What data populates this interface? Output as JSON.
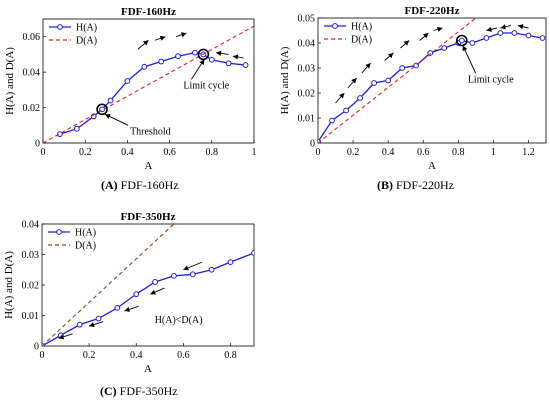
{
  "chart_data": [
    {
      "id": "A",
      "type": "line",
      "title": "FDF-160Hz",
      "xlabel": "A",
      "ylabel": "H(A) and D(A)",
      "xlim": [
        0,
        1
      ],
      "ylim": [
        0,
        0.07
      ],
      "xticks": [
        0,
        0.2,
        0.4,
        0.6,
        0.8,
        1
      ],
      "xtick_labels": [
        "0",
        "0.2",
        "0.4",
        "0.6",
        "0.8",
        "1"
      ],
      "yticks": [
        0,
        0.02,
        0.04,
        0.06
      ],
      "ytick_labels": [
        "0",
        "0.02",
        "0.04",
        "0.06"
      ],
      "grid": false,
      "legend_position": "top-left",
      "series": [
        {
          "name": "H(A)",
          "color": "#1f1fd8",
          "style": "solid-circle-markers",
          "x": [
            0.08,
            0.16,
            0.24,
            0.28,
            0.32,
            0.4,
            0.48,
            0.56,
            0.64,
            0.72,
            0.76,
            0.8,
            0.88,
            0.96
          ],
          "y": [
            0.005,
            0.008,
            0.015,
            0.019,
            0.024,
            0.035,
            0.043,
            0.046,
            0.049,
            0.051,
            0.05,
            0.047,
            0.045,
            0.044
          ]
        },
        {
          "name": "D(A)",
          "color": "#e02020",
          "style": "dashed",
          "x": [
            0,
            1
          ],
          "y": [
            0,
            0.066
          ]
        }
      ],
      "annotations": [
        {
          "text": "Threshold",
          "target": [
            0.28,
            0.019
          ],
          "type": "circled-point"
        },
        {
          "text": "Limit cycle",
          "target": [
            0.76,
            0.05
          ],
          "type": "circled-point"
        }
      ],
      "caption_letter": "(A)",
      "caption_text": "FDF-160Hz"
    },
    {
      "id": "B",
      "type": "line",
      "title": "FDF-220Hz",
      "xlabel": "A",
      "ylabel": "H(A) and D(A)",
      "xlim": [
        0,
        1.3
      ],
      "ylim": [
        0,
        0.05
      ],
      "xticks": [
        0,
        0.2,
        0.4,
        0.6,
        0.8,
        1,
        1.2
      ],
      "xtick_labels": [
        "0",
        "0.2",
        "0.4",
        "0.6",
        "0.8",
        "1",
        "1.2"
      ],
      "yticks": [
        0,
        0.01,
        0.02,
        0.03,
        0.04,
        0.05
      ],
      "ytick_labels": [
        "0",
        "0.01",
        "0.02",
        "0.03",
        "0.04",
        "0.05"
      ],
      "grid": false,
      "legend_position": "top-left",
      "series": [
        {
          "name": "H(A)",
          "color": "#1f1fd8",
          "style": "solid-circle-markers",
          "x": [
            0.0,
            0.08,
            0.16,
            0.24,
            0.32,
            0.4,
            0.48,
            0.56,
            0.64,
            0.72,
            0.8,
            0.82,
            0.88,
            0.96,
            1.04,
            1.12,
            1.2,
            1.28
          ],
          "y": [
            0.0005,
            0.009,
            0.013,
            0.018,
            0.024,
            0.025,
            0.03,
            0.031,
            0.036,
            0.038,
            0.04,
            0.041,
            0.04,
            0.042,
            0.044,
            0.044,
            0.043,
            0.042
          ]
        },
        {
          "name": "D(A)",
          "color": "#e02020",
          "style": "dashed",
          "x": [
            0,
            0.9
          ],
          "y": [
            0,
            0.05
          ]
        }
      ],
      "annotations": [
        {
          "text": "Limit cycle",
          "target": [
            0.82,
            0.041
          ],
          "type": "circled-point"
        }
      ],
      "caption_letter": "(B)",
      "caption_text": "FDF-220Hz"
    },
    {
      "id": "C",
      "type": "line",
      "title": "FDF-350Hz",
      "xlabel": "A",
      "ylabel": "H(A) and D(A)",
      "xlim": [
        0,
        0.9
      ],
      "ylim": [
        0,
        0.04
      ],
      "xticks": [
        0,
        0.2,
        0.4,
        0.6,
        0.8
      ],
      "xtick_labels": [
        "0",
        "0.2",
        "0.4",
        "0.6",
        "0.8"
      ],
      "yticks": [
        0,
        0.01,
        0.02,
        0.03,
        0.04
      ],
      "ytick_labels": [
        "0",
        "0.01",
        "0.02",
        "0.03",
        "0.04"
      ],
      "grid": false,
      "legend_position": "top-left",
      "series": [
        {
          "name": "H(A)",
          "color": "#1f1fd8",
          "style": "solid-circle-markers",
          "x": [
            0.0,
            0.08,
            0.16,
            0.24,
            0.32,
            0.4,
            0.48,
            0.56,
            0.64,
            0.72,
            0.8,
            0.9
          ],
          "y": [
            0.0,
            0.0035,
            0.007,
            0.009,
            0.0125,
            0.017,
            0.021,
            0.023,
            0.0235,
            0.025,
            0.0275,
            0.0305
          ]
        },
        {
          "name": "D(A)",
          "color": "#8b4513",
          "style": "dashed",
          "x": [
            0,
            0.56
          ],
          "y": [
            0,
            0.04
          ]
        }
      ],
      "annotations": [
        {
          "text": "H(A)<D(A)",
          "position": [
            0.58,
            0.0075
          ],
          "type": "text"
        }
      ],
      "caption_letter": "(C)",
      "caption_text": "FDF-350Hz"
    }
  ]
}
